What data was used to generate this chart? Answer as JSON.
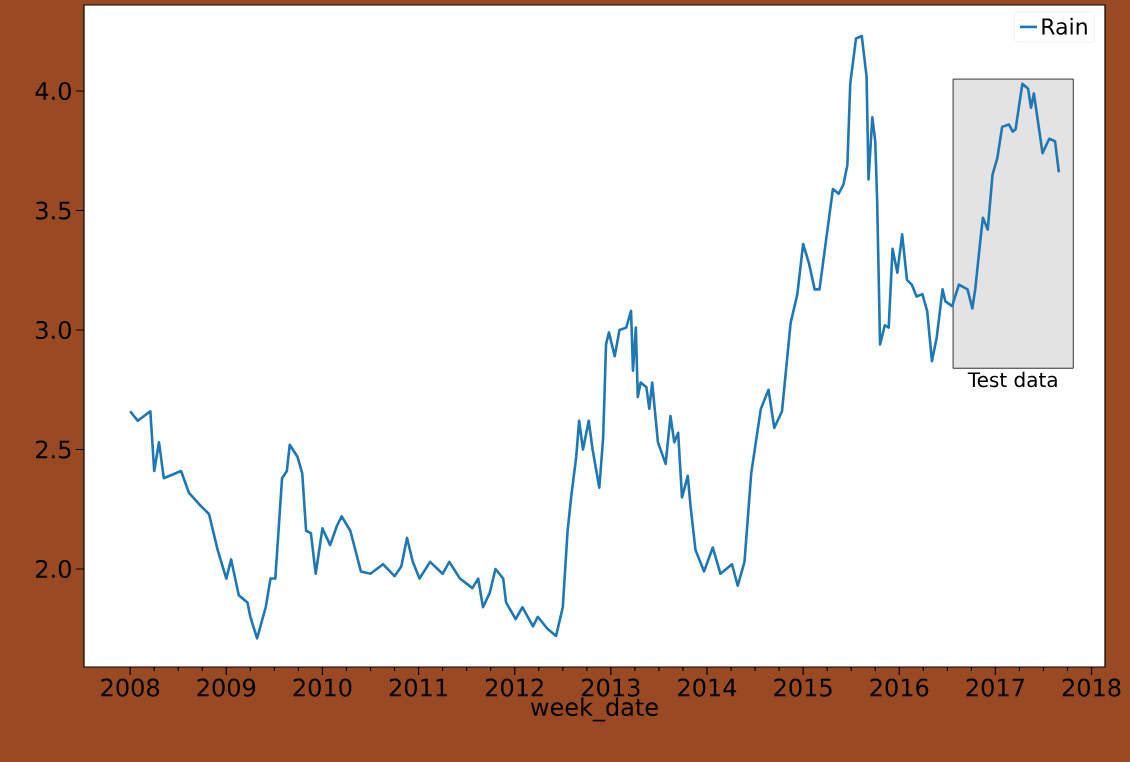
{
  "chart_data": {
    "type": "line",
    "xlabel": "week_date",
    "x": [
      2008.0,
      2008.08,
      2008.21,
      2008.25,
      2008.3,
      2008.35,
      2008.53,
      2008.61,
      2008.72,
      2008.82,
      2008.91,
      2009.0,
      2009.05,
      2009.13,
      2009.22,
      2009.25,
      2009.32,
      2009.41,
      2009.46,
      2009.51,
      2009.58,
      2009.63,
      2009.66,
      2009.74,
      2009.79,
      2009.83,
      2009.88,
      2009.93,
      2010.0,
      2010.08,
      2010.15,
      2010.2,
      2010.29,
      2010.4,
      2010.5,
      2010.63,
      2010.75,
      2010.82,
      2010.88,
      2010.94,
      2011.01,
      2011.12,
      2011.25,
      2011.32,
      2011.43,
      2011.56,
      2011.62,
      2011.67,
      2011.74,
      2011.8,
      2011.88,
      2011.91,
      2012.01,
      2012.08,
      2012.19,
      2012.24,
      2012.34,
      2012.43,
      2012.5,
      2012.55,
      2012.59,
      2012.64,
      2012.67,
      2012.71,
      2012.77,
      2012.81,
      2012.88,
      2012.92,
      2012.95,
      2012.98,
      2013.04,
      2013.09,
      2013.16,
      2013.21,
      2013.23,
      2013.26,
      2013.28,
      2013.31,
      2013.37,
      2013.4,
      2013.43,
      2013.49,
      2013.57,
      2013.62,
      2013.66,
      2013.7,
      2013.74,
      2013.8,
      2013.83,
      2013.88,
      2013.97,
      2014.06,
      2014.14,
      2014.26,
      2014.32,
      2014.39,
      2014.46,
      2014.56,
      2014.64,
      2014.7,
      2014.78,
      2014.87,
      2014.94,
      2015.0,
      2015.06,
      2015.12,
      2015.17,
      2015.23,
      2015.27,
      2015.31,
      2015.37,
      2015.42,
      2015.46,
      2015.49,
      2015.55,
      2015.61,
      2015.66,
      2015.68,
      2015.72,
      2015.75,
      2015.77,
      2015.8,
      2015.85,
      2015.89,
      2015.93,
      2015.98,
      2016.03,
      2016.08,
      2016.13,
      2016.18,
      2016.24,
      2016.29,
      2016.34,
      2016.39,
      2016.45,
      2016.48,
      2016.55,
      2016.62,
      2016.71,
      2016.76,
      2016.79,
      2016.85,
      2016.87,
      2016.92,
      2016.97,
      2017.02,
      2017.07,
      2017.14,
      2017.18,
      2017.21,
      2017.28,
      2017.34,
      2017.37,
      2017.4,
      2017.44,
      2017.49,
      2017.56,
      2017.62,
      2017.66
    ],
    "series": [
      {
        "name": "Rain",
        "color": "#1f77b4",
        "values": [
          2.66,
          2.62,
          2.66,
          2.41,
          2.53,
          2.38,
          2.41,
          2.32,
          2.27,
          2.23,
          2.08,
          1.96,
          2.04,
          1.89,
          1.86,
          1.8,
          1.71,
          1.84,
          1.96,
          1.96,
          2.38,
          2.41,
          2.52,
          2.47,
          2.4,
          2.16,
          2.15,
          1.98,
          2.17,
          2.1,
          2.18,
          2.22,
          2.16,
          1.99,
          1.98,
          2.02,
          1.97,
          2.01,
          2.13,
          2.03,
          1.96,
          2.03,
          1.98,
          2.03,
          1.96,
          1.92,
          1.96,
          1.84,
          1.9,
          2.0,
          1.96,
          1.86,
          1.79,
          1.84,
          1.76,
          1.8,
          1.75,
          1.72,
          1.84,
          2.16,
          2.31,
          2.47,
          2.62,
          2.5,
          2.62,
          2.5,
          2.34,
          2.55,
          2.94,
          2.99,
          2.89,
          3.0,
          3.01,
          3.08,
          2.83,
          3.01,
          2.72,
          2.78,
          2.76,
          2.67,
          2.78,
          2.53,
          2.44,
          2.64,
          2.53,
          2.57,
          2.3,
          2.39,
          2.26,
          2.08,
          1.99,
          2.09,
          1.98,
          2.02,
          1.93,
          2.03,
          2.4,
          2.67,
          2.75,
          2.59,
          2.66,
          3.03,
          3.15,
          3.36,
          3.28,
          3.17,
          3.17,
          3.35,
          3.47,
          3.59,
          3.57,
          3.61,
          3.69,
          4.03,
          4.22,
          4.23,
          4.06,
          3.63,
          3.89,
          3.79,
          3.54,
          2.94,
          3.02,
          3.01,
          3.34,
          3.24,
          3.4,
          3.21,
          3.19,
          3.14,
          3.15,
          3.08,
          2.87,
          2.97,
          3.17,
          3.12,
          3.1,
          3.19,
          3.17,
          3.09,
          3.17,
          3.4,
          3.47,
          3.42,
          3.65,
          3.72,
          3.85,
          3.86,
          3.83,
          3.84,
          4.03,
          4.01,
          3.93,
          3.99,
          3.88,
          3.74,
          3.8,
          3.79,
          3.66
        ]
      }
    ],
    "xlim": [
      2007.52,
      2018.14
    ],
    "ylim": [
      1.59,
      4.36
    ],
    "xticks": [
      2008,
      2009,
      2010,
      2011,
      2012,
      2013,
      2014,
      2015,
      2016,
      2017,
      2018
    ],
    "yticks": [
      {
        "value": 2,
        "label": "2.0"
      },
      {
        "value": 2.5,
        "label": "2.5"
      },
      {
        "value": 3,
        "label": "3.0"
      },
      {
        "value": 3.5,
        "label": "3.5"
      },
      {
        "value": 4,
        "label": "4.0"
      }
    ],
    "legend": "top right",
    "bands": [
      {
        "axis": "x",
        "from": 2016.56,
        "to": 2017.81,
        "label": "Test data",
        "color": "#e3e3e3"
      }
    ]
  }
}
